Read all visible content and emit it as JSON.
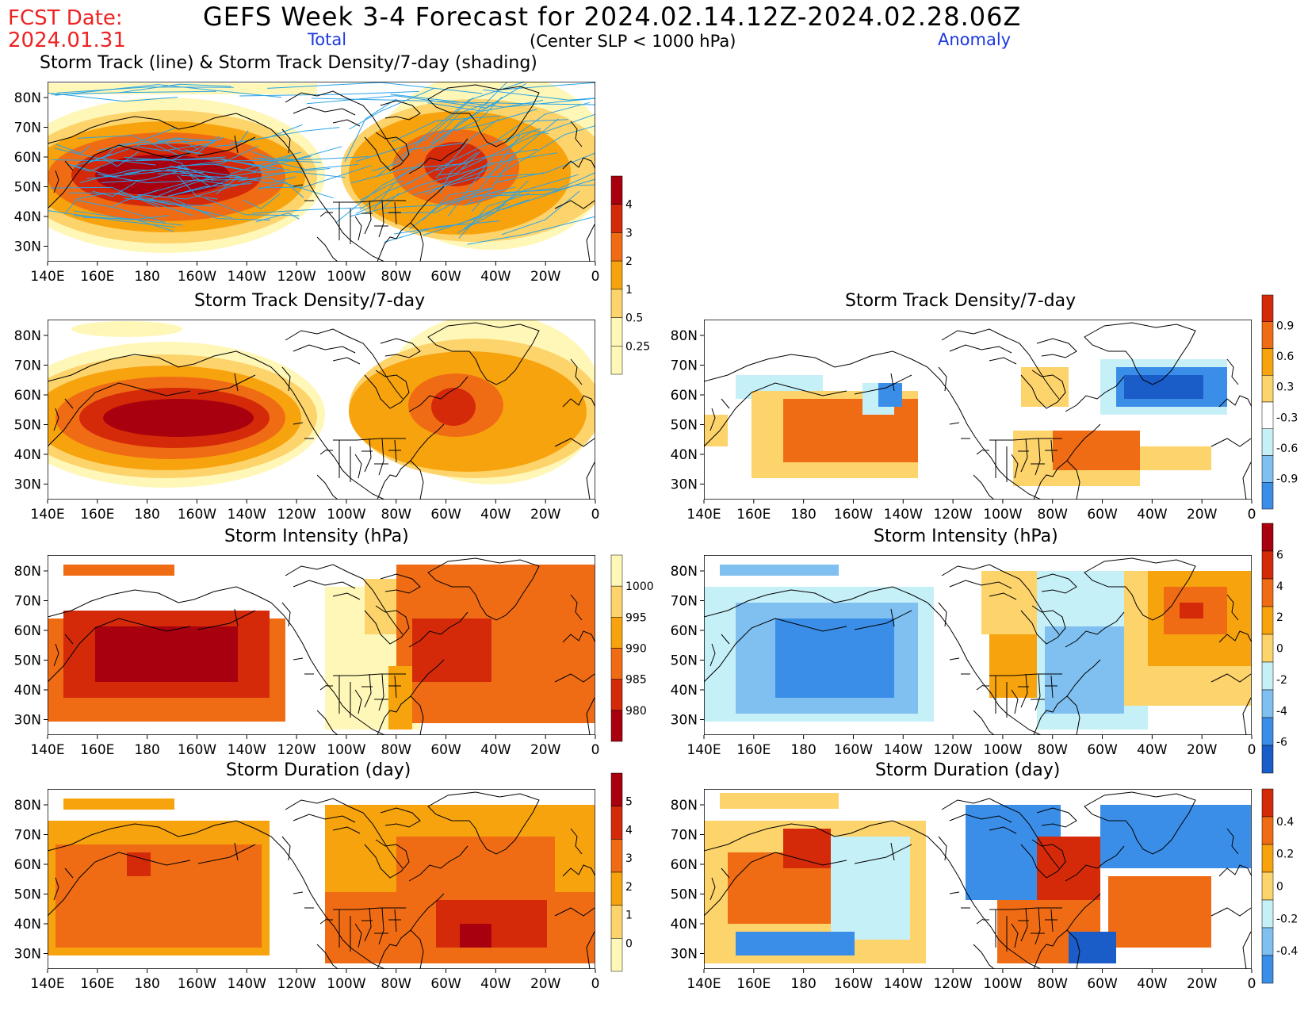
{
  "header": {
    "fcst_label": "FCST Date:",
    "fcst_date": "2024.01.31",
    "title": "GEFS Week 3-4 Forecast for 2024.02.14.12Z-2024.02.28.06Z",
    "subtitle_total": "Total",
    "subtitle_center": "(Center SLP < 1000 hPa)",
    "subtitle_anomaly": "Anomaly"
  },
  "axes": {
    "lon_labels": [
      "140E",
      "160E",
      "180",
      "160W",
      "140W",
      "120W",
      "100W",
      "80W",
      "60W",
      "40W",
      "20W",
      "0"
    ],
    "lat_labels": [
      "80N",
      "70N",
      "60N",
      "50N",
      "40N",
      "30N"
    ]
  },
  "panels": {
    "track": {
      "title": "Storm Track (line) & Storm Track Density/7-day (shading)"
    },
    "density_total": {
      "title": "Storm Track Density/7-day"
    },
    "density_anom": {
      "title": "Storm Track Density/7-day"
    },
    "intensity_total": {
      "title": "Storm Intensity (hPa)"
    },
    "intensity_anom": {
      "title": "Storm Intensity (hPa)"
    },
    "duration_total": {
      "title": "Storm Duration (day)"
    },
    "duration_anom": {
      "title": "Storm Duration (day)"
    }
  },
  "colorbars": {
    "density_total": {
      "labels": [
        "4",
        "3",
        "2",
        "1",
        "0.5",
        "0.25"
      ]
    },
    "density_anom": {
      "labels": [
        "0.9",
        "0.6",
        "0.3",
        "-0.3",
        "-0.6",
        "-0.9"
      ]
    },
    "intensity_total": {
      "labels": [
        "1000",
        "995",
        "990",
        "985",
        "980"
      ]
    },
    "intensity_anom": {
      "labels": [
        "6",
        "4",
        "2",
        "0",
        "-2",
        "-4",
        "-6"
      ]
    },
    "duration_total": {
      "labels": [
        "5",
        "4",
        "3",
        "2",
        "1",
        "0"
      ]
    },
    "duration_anom": {
      "labels": [
        "0.4",
        "0.2",
        "0",
        "-0.2",
        "-0.4"
      ]
    }
  },
  "colors": {
    "pale_yellow": "#fff7b8",
    "light_orange": "#fdd36b",
    "orange": "#f7a30e",
    "dark_orange": "#f06c14",
    "red": "#d42a0a",
    "dark_red": "#a8000e",
    "light_blue": "#c6f0f8",
    "mid_blue": "#7fc0f0",
    "blue": "#3a8ee8",
    "dark_blue": "#1a5cc8",
    "track_line": "#29a3e6",
    "title_red": "#ee2222",
    "title_blue": "#1b38e0"
  }
}
